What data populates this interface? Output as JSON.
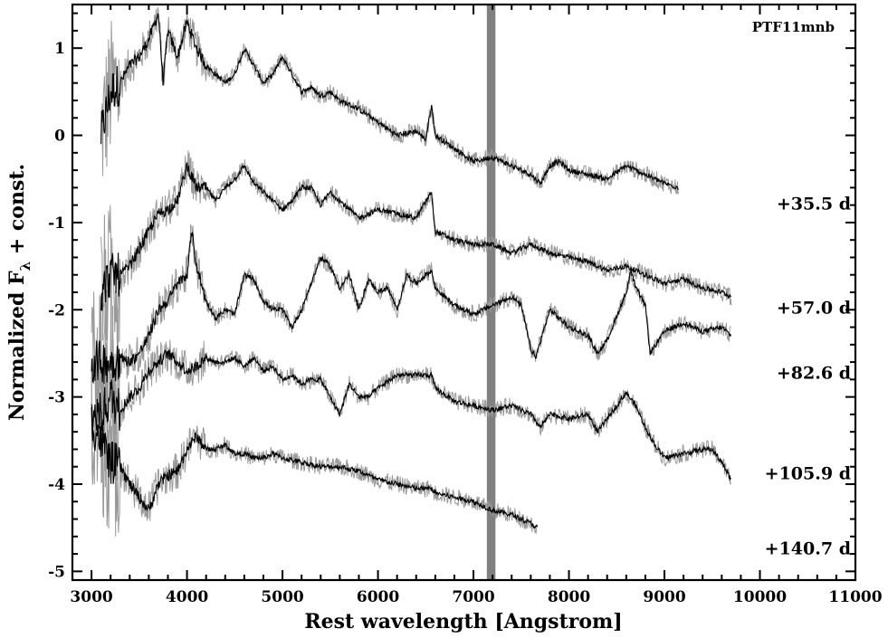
{
  "chart_data": {
    "type": "line",
    "object_label": "PTF11mnb",
    "xlabel": "Rest wavelength [Angstrom]",
    "ylabel_main": "Normalized F",
    "ylabel_sub": "λ",
    "ylabel_tail": " + const.",
    "xlim": [
      2800,
      11000
    ],
    "ylim": [
      -5.1,
      1.5
    ],
    "xticks": [
      3000,
      4000,
      5000,
      6000,
      7000,
      8000,
      9000,
      10000,
      11000
    ],
    "xtick_labels": [
      "3000",
      "4000",
      "5000",
      "6000",
      "7000",
      "8000",
      "9000",
      "10000",
      "11000"
    ],
    "yticks": [
      1,
      0,
      -1,
      -2,
      -3,
      -4,
      -5
    ],
    "ytick_labels": [
      "1",
      "0",
      "-1",
      "-2",
      "-3",
      "-4",
      "-5"
    ],
    "telluric_band": [
      7140,
      7230
    ],
    "colors": {
      "raw": "#999999",
      "smoothed": "#000000",
      "band": "#808080",
      "axes": "#000000"
    },
    "series": [
      {
        "epoch": "+35.5 d",
        "label_y": -0.78,
        "x": [
          3100,
          3200,
          3300,
          3400,
          3500,
          3600,
          3700,
          3750,
          3800,
          3900,
          4000,
          4100,
          4200,
          4300,
          4400,
          4500,
          4600,
          4700,
          4800,
          4900,
          5000,
          5100,
          5200,
          5300,
          5400,
          5500,
          5600,
          5800,
          6000,
          6200,
          6400,
          6500,
          6560,
          6600,
          6800,
          7000,
          7200,
          7400,
          7600,
          7700,
          7800,
          7900,
          8000,
          8200,
          8400,
          8600,
          8800,
          9000,
          9150
        ],
        "y": [
          0.0,
          0.5,
          0.6,
          0.8,
          0.9,
          1.1,
          1.4,
          0.6,
          1.2,
          0.9,
          1.3,
          1.0,
          0.8,
          0.7,
          0.6,
          0.7,
          1.0,
          0.8,
          0.6,
          0.7,
          0.9,
          0.7,
          0.5,
          0.55,
          0.45,
          0.5,
          0.4,
          0.3,
          0.15,
          0.0,
          0.05,
          -0.05,
          0.35,
          0.0,
          -0.15,
          -0.3,
          -0.25,
          -0.35,
          -0.45,
          -0.55,
          -0.35,
          -0.3,
          -0.4,
          -0.45,
          -0.5,
          -0.35,
          -0.45,
          -0.55,
          -0.6
        ]
      },
      {
        "epoch": "+57.0 d",
        "label_y": -1.97,
        "x": [
          3100,
          3200,
          3300,
          3400,
          3500,
          3600,
          3700,
          3800,
          3900,
          4000,
          4100,
          4200,
          4300,
          4400,
          4500,
          4600,
          4700,
          4800,
          4900,
          5000,
          5100,
          5200,
          5300,
          5400,
          5500,
          5600,
          5700,
          5800,
          6000,
          6200,
          6400,
          6560,
          6600,
          6800,
          7000,
          7200,
          7400,
          7600,
          7800,
          8000,
          8200,
          8400,
          8600,
          8800,
          9000,
          9200,
          9400,
          9600,
          9700
        ],
        "y": [
          -1.8,
          -1.6,
          -1.6,
          -1.5,
          -1.3,
          -1.1,
          -0.9,
          -0.85,
          -0.75,
          -0.35,
          -0.6,
          -0.6,
          -0.75,
          -0.6,
          -0.5,
          -0.35,
          -0.55,
          -0.65,
          -0.75,
          -0.85,
          -0.75,
          -0.6,
          -0.6,
          -0.8,
          -0.65,
          -0.75,
          -0.85,
          -0.95,
          -0.85,
          -0.9,
          -0.95,
          -0.65,
          -1.1,
          -1.2,
          -1.25,
          -1.25,
          -1.35,
          -1.25,
          -1.35,
          -1.4,
          -1.45,
          -1.55,
          -1.5,
          -1.6,
          -1.7,
          -1.65,
          -1.75,
          -1.8,
          -1.85
        ]
      },
      {
        "epoch": "+82.6 d",
        "label_y": -2.72,
        "x": [
          3000,
          3100,
          3200,
          3300,
          3400,
          3500,
          3600,
          3700,
          3800,
          3900,
          4000,
          4050,
          4100,
          4200,
          4300,
          4400,
          4500,
          4600,
          4700,
          4800,
          4900,
          5000,
          5100,
          5200,
          5300,
          5400,
          5500,
          5600,
          5700,
          5800,
          5900,
          6000,
          6100,
          6200,
          6300,
          6400,
          6500,
          6560,
          6600,
          6800,
          7000,
          7200,
          7400,
          7500,
          7600,
          7650,
          7800,
          8000,
          8200,
          8300,
          8400,
          8600,
          8650,
          8700,
          8800,
          8850,
          9000,
          9200,
          9400,
          9600,
          9700
        ],
        "y": [
          -2.6,
          -2.6,
          -2.6,
          -2.55,
          -2.6,
          -2.5,
          -2.3,
          -2.0,
          -1.9,
          -1.7,
          -1.6,
          -1.1,
          -1.5,
          -1.9,
          -2.1,
          -2.0,
          -2.05,
          -1.6,
          -1.65,
          -1.9,
          -2.0,
          -2.0,
          -2.2,
          -2.0,
          -1.7,
          -1.4,
          -1.5,
          -1.75,
          -1.6,
          -2.0,
          -1.65,
          -1.8,
          -1.75,
          -2.0,
          -1.6,
          -1.7,
          -1.6,
          -1.55,
          -1.75,
          -1.95,
          -2.05,
          -1.95,
          -1.85,
          -1.95,
          -2.45,
          -2.55,
          -2.0,
          -2.2,
          -2.3,
          -2.5,
          -2.35,
          -1.8,
          -1.55,
          -1.75,
          -1.95,
          -2.5,
          -2.25,
          -2.15,
          -2.25,
          -2.2,
          -2.3
        ]
      },
      {
        "epoch": "+105.9 d",
        "label_y": -3.87,
        "x": [
          3000,
          3100,
          3200,
          3300,
          3400,
          3500,
          3600,
          3700,
          3800,
          3900,
          4000,
          4100,
          4200,
          4300,
          4400,
          4500,
          4600,
          4700,
          4800,
          4900,
          5000,
          5100,
          5200,
          5300,
          5400,
          5500,
          5600,
          5700,
          5800,
          5900,
          6000,
          6200,
          6400,
          6560,
          6600,
          6800,
          7000,
          7200,
          7400,
          7600,
          7700,
          7800,
          8000,
          8200,
          8300,
          8400,
          8600,
          8700,
          8800,
          8900,
          9000,
          9200,
          9400,
          9500,
          9600,
          9700
        ],
        "y": [
          -3.2,
          -3.2,
          -3.0,
          -3.15,
          -3.0,
          -2.9,
          -2.7,
          -2.6,
          -2.5,
          -2.6,
          -2.7,
          -2.65,
          -2.55,
          -2.6,
          -2.6,
          -2.55,
          -2.65,
          -2.55,
          -2.7,
          -2.65,
          -2.8,
          -2.75,
          -2.85,
          -2.8,
          -2.8,
          -3.0,
          -3.2,
          -2.85,
          -3.0,
          -3.0,
          -2.9,
          -2.75,
          -2.75,
          -2.75,
          -2.9,
          -3.05,
          -3.1,
          -3.15,
          -3.1,
          -3.2,
          -3.35,
          -3.2,
          -3.25,
          -3.2,
          -3.4,
          -3.25,
          -2.95,
          -3.1,
          -3.35,
          -3.55,
          -3.7,
          -3.65,
          -3.6,
          -3.6,
          -3.75,
          -3.95
        ]
      },
      {
        "epoch": "+140.7 d",
        "label_y": -4.73,
        "x": [
          3000,
          3100,
          3200,
          3300,
          3400,
          3500,
          3600,
          3700,
          3800,
          3900,
          4000,
          4100,
          4200,
          4300,
          4400,
          4500,
          4600,
          4700,
          4800,
          4900,
          5000,
          5200,
          5400,
          5600,
          5800,
          6000,
          6200,
          6400,
          6560,
          6600,
          6800,
          7000,
          7200,
          7400,
          7600,
          7670
        ],
        "y": [
          -3.3,
          -3.5,
          -3.75,
          -3.8,
          -4.0,
          -4.15,
          -4.3,
          -4.0,
          -3.9,
          -3.85,
          -3.6,
          -3.45,
          -3.6,
          -3.6,
          -3.55,
          -3.65,
          -3.65,
          -3.7,
          -3.7,
          -3.65,
          -3.7,
          -3.75,
          -3.8,
          -3.8,
          -3.85,
          -3.95,
          -4.0,
          -4.05,
          -4.05,
          -4.1,
          -4.15,
          -4.2,
          -4.3,
          -4.35,
          -4.45,
          -4.5
        ]
      }
    ]
  }
}
